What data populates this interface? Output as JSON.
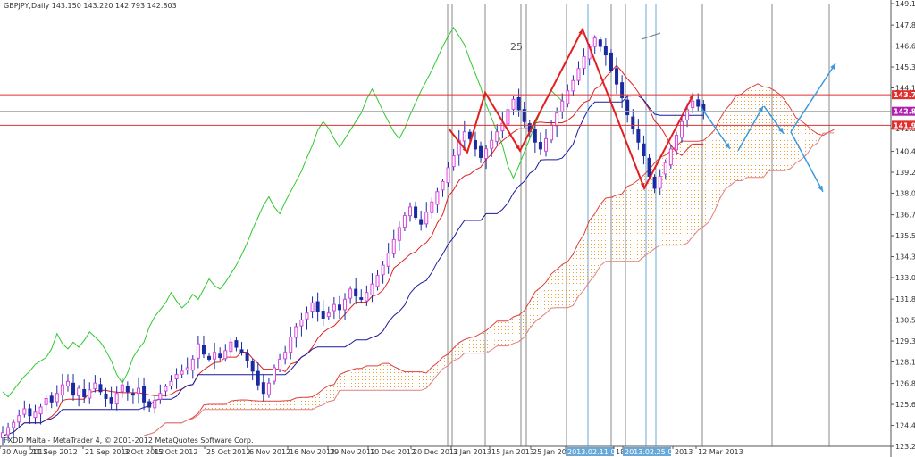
{
  "title": "GBPJPY,Daily  143.150 143.220 142.793 142.803",
  "watermark": "FXDD Malta - MetaTrader 4, © 2001-2012 MetaQuotes Software Corp.",
  "label_25": "25",
  "colors": {
    "bull_fill": "#ffffff",
    "bull_body": "#dd44dd",
    "bear_body": "#1a2aa0",
    "wick": "#1a2aa0",
    "tenkan": "#e02020",
    "kijun": "#1a1a9c",
    "chikou": "#2ec82e",
    "span_a": "#e04040",
    "span_b": "#e08080",
    "cloud_hatch": "#f0a030",
    "zigzag": "#e02020",
    "projection": "#3a9ae0",
    "hline": "#e03030",
    "vline": "#888888",
    "vline_blue": "#6aa8d8",
    "cur_price_bg": "#b020b0"
  },
  "chart_data": {
    "type": "candlestick",
    "symbol": "GBPJPY",
    "timeframe": "Daily",
    "ohlc": [
      143.15,
      143.22,
      142.793,
      142.803
    ],
    "ylim": [
      123.205,
      149.105
    ],
    "y_ticks": [
      149.105,
      147.845,
      146.62,
      145.395,
      144.17,
      141.805,
      140.46,
      139.235,
      138.01,
      136.75,
      135.525,
      134.3,
      133.075,
      131.815,
      130.59,
      129.365,
      128.14,
      126.88,
      125.655,
      124.43,
      123.205
    ],
    "x_tick_labels": [
      "30 Aug 2012",
      "11 Sep 2012",
      "21 Sep 2012",
      "3 Oct 2012",
      "15 Oct 2012",
      "25 Oct 2012",
      "6 Nov 2012",
      "16 Nov 2012",
      "29 Nov 2012",
      "10 Dec 2012",
      "20 Dec 2012",
      "3 Jan 2013",
      "15 Jan 2013",
      "25 Jan 2013",
      "2013.02.11 00:00",
      "18",
      "2013.02.25 00:00",
      "2013",
      "12 Mar 2013"
    ],
    "price_labels": [
      {
        "label": "143.770",
        "value": 143.77
      },
      {
        "label": "142.803",
        "value": 142.803
      },
      {
        "label": "141.984",
        "value": 141.984
      }
    ],
    "horizontal_lines": [
      143.77,
      141.984
    ],
    "closes": [
      124.0,
      124.3,
      124.6,
      125.0,
      125.4,
      125.0,
      125.2,
      125.5,
      126.0,
      125.8,
      126.3,
      126.8,
      127.0,
      126.2,
      126.6,
      126.1,
      126.5,
      126.9,
      126.4,
      126.0,
      125.7,
      126.3,
      126.8,
      126.4,
      126.2,
      126.6,
      125.8,
      125.5,
      125.9,
      126.3,
      126.7,
      127.0,
      127.4,
      127.6,
      127.8,
      128.3,
      129.2,
      128.6,
      128.3,
      128.7,
      128.4,
      128.8,
      129.3,
      129.0,
      128.7,
      128.2,
      127.6,
      126.8,
      126.3,
      126.9,
      127.8,
      128.3,
      128.7,
      129.6,
      130.2,
      130.6,
      131.0,
      131.6,
      131.1,
      130.7,
      131.0,
      131.5,
      131.2,
      131.8,
      132.4,
      132.0,
      131.8,
      132.2,
      132.7,
      133.2,
      133.8,
      134.5,
      135.3,
      136.0,
      136.7,
      137.2,
      136.6,
      136.2,
      136.9,
      137.5,
      138.1,
      138.7,
      139.5,
      140.2,
      141.1,
      141.6,
      141.2,
      140.6,
      140.1,
      140.6,
      141.1,
      141.6,
      142.1,
      142.9,
      143.5,
      142.9,
      142.2,
      141.6,
      141.0,
      140.6,
      141.2,
      142.0,
      142.7,
      143.4,
      144.0,
      144.6,
      145.3,
      146.0,
      146.6,
      147.1,
      146.6,
      146.1,
      145.2,
      144.4,
      143.6,
      142.6,
      141.8,
      141.0,
      140.2,
      139.0,
      138.3,
      139.0,
      139.8,
      140.6,
      141.4,
      142.2,
      142.9,
      143.4,
      143.1,
      142.8
    ],
    "zigzag": [
      {
        "date": "late Dec 2012",
        "price": 141.8
      },
      {
        "date": "early Jan 2013",
        "price": 140.4
      },
      {
        "date": "mid Jan 2013",
        "price": 143.9
      },
      {
        "date": "mid Jan 2013",
        "price": 140.5
      },
      {
        "date": "2013.02.08",
        "price": 147.6
      },
      {
        "date": "2013.02.25",
        "price": 138.3
      },
      {
        "date": "Mar 2013",
        "price": 143.8
      }
    ],
    "projection": [
      {
        "from": 143.0,
        "to": 140.6
      },
      {
        "from": 140.5,
        "to": 143.1
      },
      {
        "from": 143.1,
        "to": 141.5
      },
      {
        "from": 141.6,
        "to": 145.6
      },
      {
        "from": 141.6,
        "to": 138.1
      }
    ]
  }
}
